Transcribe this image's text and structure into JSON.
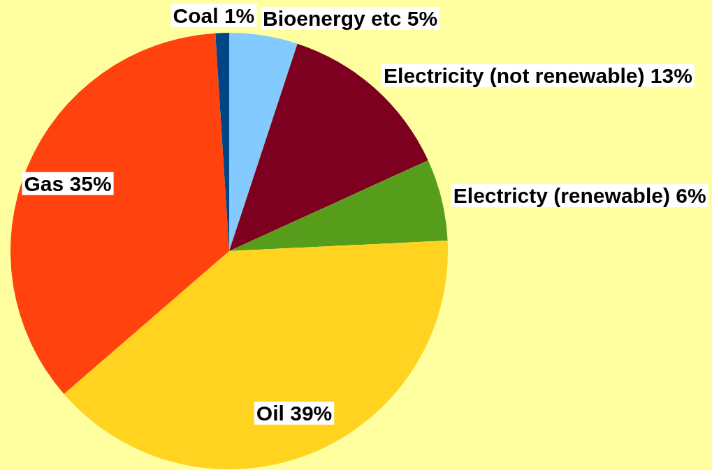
{
  "chart_data": {
    "type": "pie",
    "categories": [
      "Bioenergy etc",
      "Electricity (not renewable)",
      "Electricty (renewable)",
      "Oil",
      "Gas",
      "Coal"
    ],
    "values": [
      5,
      13,
      6,
      39,
      35,
      1
    ],
    "value_labels": [
      "5%",
      "13%",
      "6%",
      "39%",
      "35%",
      "1%"
    ],
    "colors": [
      "#83caff",
      "#7e0021",
      "#579d1c",
      "#ffd320",
      "#ff420e",
      "#004586"
    ]
  }
}
